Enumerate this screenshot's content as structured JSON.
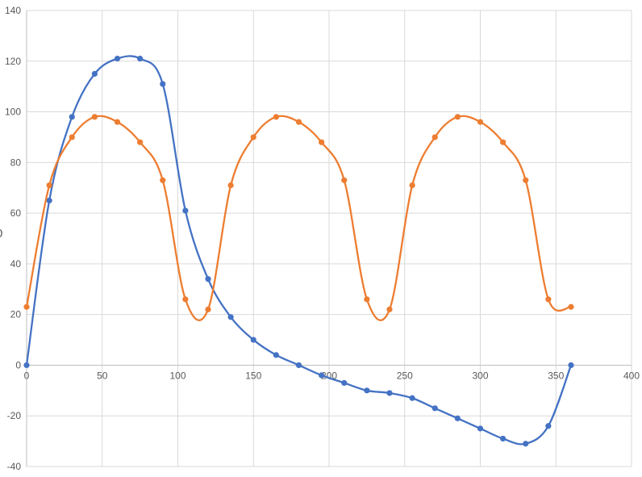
{
  "chart_data": {
    "type": "line",
    "title": "",
    "xlabel": "",
    "ylabel": "",
    "legend": "none",
    "grid": true,
    "smooth": true,
    "xlim": [
      0,
      400
    ],
    "ylim": [
      -40,
      140
    ],
    "x_ticks": [
      0,
      50,
      100,
      150,
      200,
      250,
      300,
      350,
      400
    ],
    "y_ticks": [
      -40,
      -20,
      0,
      20,
      40,
      60,
      80,
      100,
      120,
      140
    ],
    "x": [
      0,
      15,
      30,
      45,
      60,
      75,
      90,
      105,
      120,
      135,
      150,
      165,
      180,
      195,
      210,
      225,
      240,
      255,
      270,
      285,
      300,
      315,
      330,
      345,
      360
    ],
    "series": [
      {
        "name": "blue",
        "color": "#4472C4",
        "marker": "circle",
        "values": [
          0,
          65,
          98,
          115,
          121,
          121,
          111,
          61,
          34,
          19,
          10,
          4,
          0,
          -4,
          -7,
          -10,
          -11,
          -13,
          -17,
          -21,
          -25,
          -29,
          -31,
          -24,
          0
        ]
      },
      {
        "name": "orange",
        "color": "#ED7D31",
        "marker": "circle",
        "values": [
          23,
          71,
          90,
          98,
          96,
          88,
          73,
          26,
          22,
          71,
          90,
          98,
          96,
          88,
          73,
          26,
          22,
          71,
          90,
          98,
          96,
          88,
          73,
          26,
          23
        ]
      }
    ]
  },
  "axis_fragment": {
    "text": "0"
  },
  "colors": {
    "background": "#FFFFFF",
    "gridline": "#D9D9D9",
    "axis_line": "#BFBFBF",
    "tick_text": "#595959",
    "series_blue": "#4472C4",
    "series_orange": "#ED7D31"
  }
}
